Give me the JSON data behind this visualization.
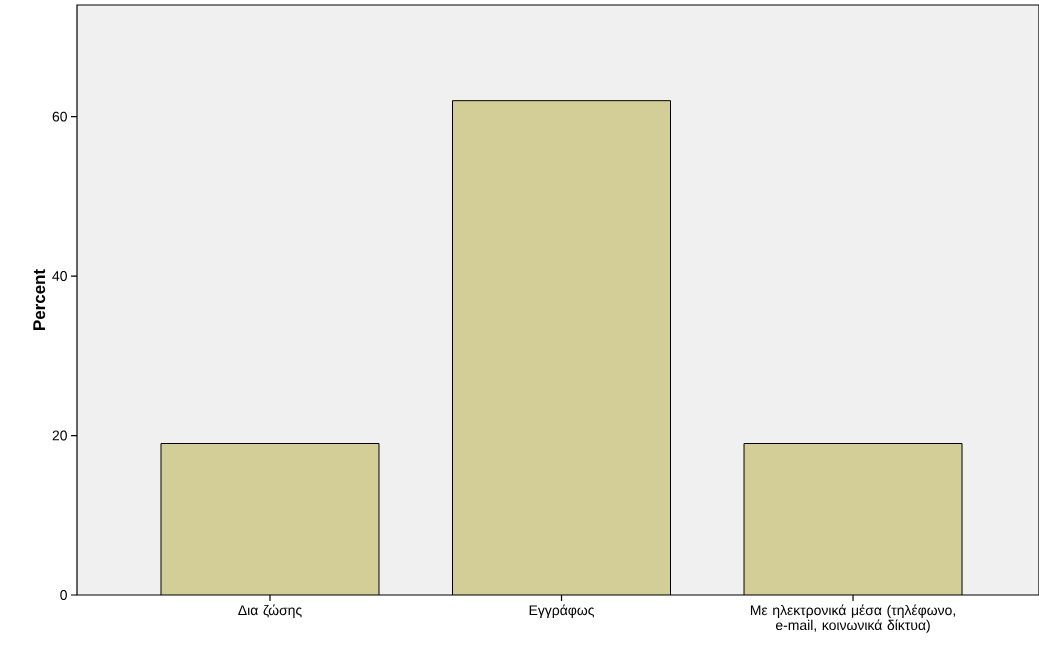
{
  "chart_data": {
    "type": "bar",
    "ylabel": "Percent",
    "categories": [
      "Δια ζώσης",
      "Εγγράφως",
      "Με ηλεκτρονικά μέσα (τηλέφωνο, e-mail, κοινωνικά δίκτυα)"
    ],
    "values": [
      19,
      62,
      19
    ],
    "color": "#d3ce97",
    "ylim": [
      0,
      74
    ],
    "yticks": [
      0,
      20,
      40,
      60
    ],
    "grid": false
  }
}
